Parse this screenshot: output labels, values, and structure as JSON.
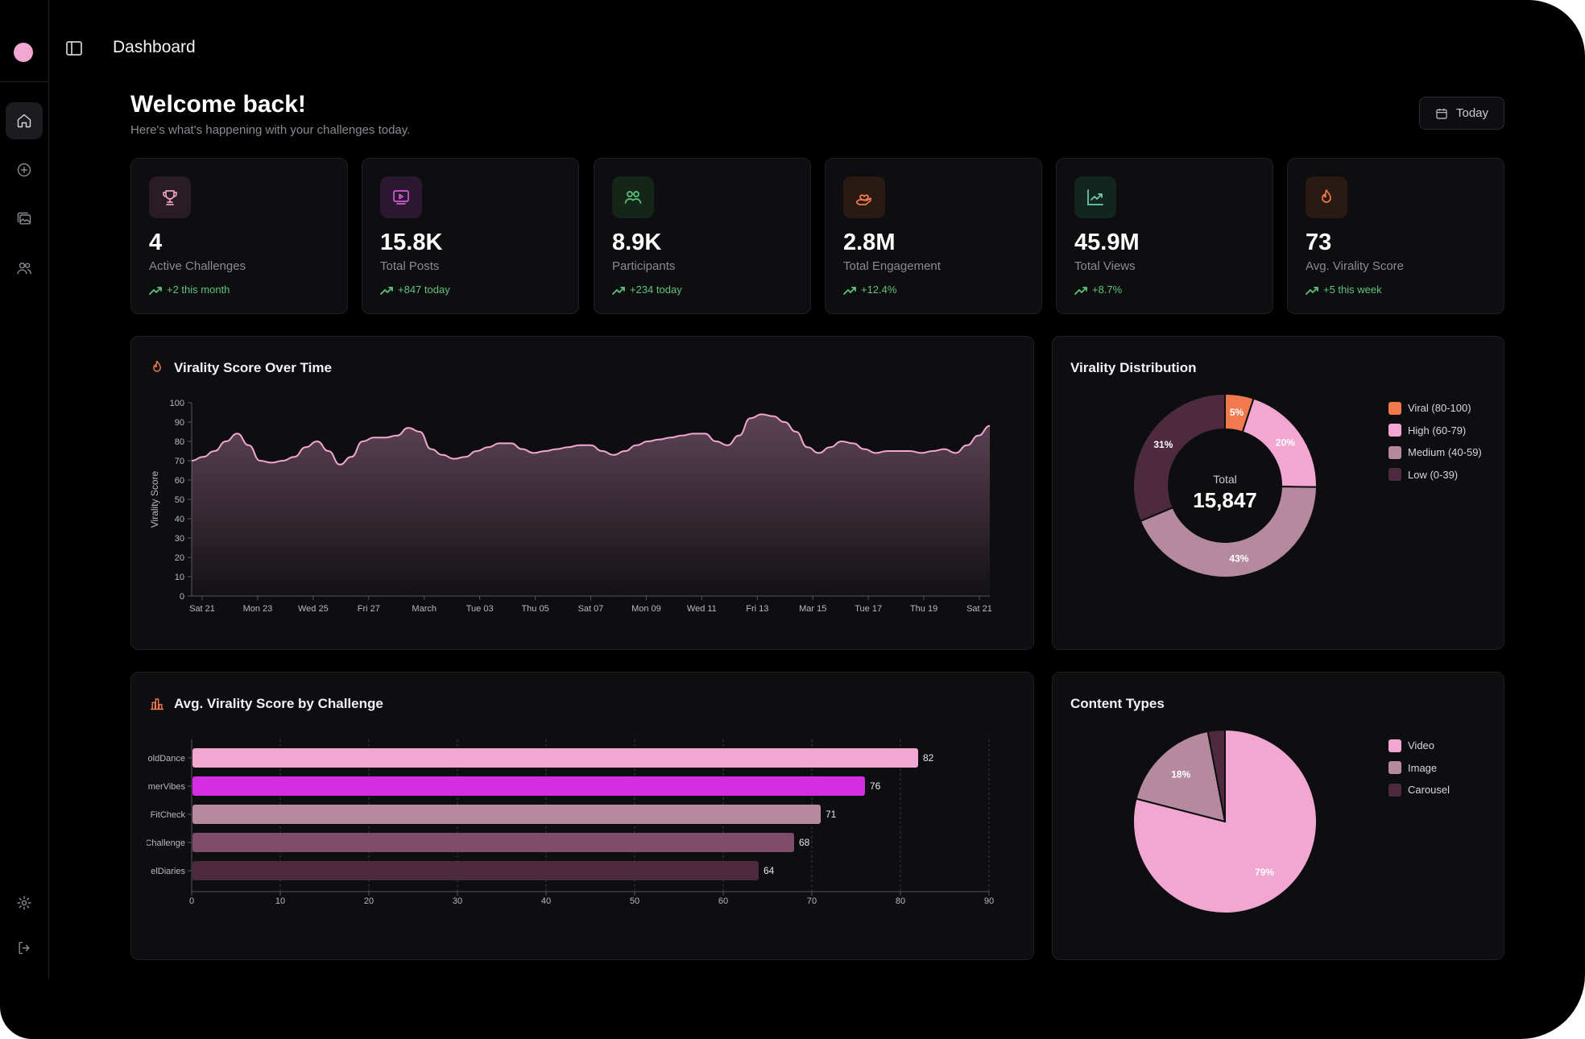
{
  "header": {
    "title": "Dashboard"
  },
  "welcome": {
    "title": "Welcome back!",
    "subtitle": "Here's what's happening with your challenges today."
  },
  "date_filter": {
    "label": "Today"
  },
  "sidebar": {
    "nav": [
      {
        "icon": "home-icon",
        "active": true
      },
      {
        "icon": "plus-circle-icon",
        "active": false
      },
      {
        "icon": "gallery-icon",
        "active": false
      },
      {
        "icon": "users-icon",
        "active": false
      }
    ],
    "bottom": [
      {
        "icon": "gear-icon"
      },
      {
        "icon": "logout-icon"
      }
    ]
  },
  "stats": [
    {
      "icon": "trophy-icon",
      "value": "4",
      "label": "Active Challenges",
      "delta": "+2 this month",
      "color": "#e8a0c0",
      "bg": "#2a1c24"
    },
    {
      "icon": "video-icon",
      "value": "15.8K",
      "label": "Total Posts",
      "delta": "+847 today",
      "color": "#d45ad8",
      "bg": "#2a1830"
    },
    {
      "icon": "users-icon",
      "value": "8.9K",
      "label": "Participants",
      "delta": "+234 today",
      "color": "#5ec27a",
      "bg": "#14261a"
    },
    {
      "icon": "heart-hand-icon",
      "value": "2.8M",
      "label": "Total Engagement",
      "delta": "+12.4%",
      "color": "#f07a4e",
      "bg": "#2a1a14"
    },
    {
      "icon": "trend-chart-icon",
      "value": "45.9M",
      "label": "Total Views",
      "delta": "+8.7%",
      "color": "#6fd0a8",
      "bg": "#12261f"
    },
    {
      "icon": "flame-icon",
      "value": "73",
      "label": "Avg. Virality Score",
      "delta": "+5 this week",
      "color": "#f07a4e",
      "bg": "#2a1a14"
    }
  ],
  "colors": {
    "accent_pink": "#f2a7d2",
    "magenta": "#d42ee0",
    "orange": "#f07a4e",
    "green": "#5ec27a",
    "card_bg": "#0e0e11"
  },
  "chart_data": [
    {
      "type": "area",
      "title": "Virality Score Over Time",
      "ylabel": "Virality Score",
      "ylim": [
        0,
        100
      ],
      "yticks": [
        0,
        10,
        20,
        30,
        40,
        50,
        60,
        70,
        80,
        90,
        100
      ],
      "xtick_labels": [
        "Sat 21",
        "Mon 23",
        "Wed 25",
        "Fri 27",
        "March",
        "Tue 03",
        "Thu 05",
        "Sat 07",
        "Mon 09",
        "Wed 11",
        "Fri 13",
        "Mar 15",
        "Tue 17",
        "Thu 19",
        "Sat 21"
      ],
      "values": [
        70,
        72,
        75,
        80,
        84,
        78,
        70,
        69,
        70,
        72,
        77,
        80,
        75,
        68,
        72,
        80,
        82,
        82,
        83,
        87,
        85,
        76,
        73,
        71,
        72,
        75,
        77,
        79,
        79,
        76,
        74,
        75,
        76,
        77,
        78,
        78,
        75,
        73,
        75,
        78,
        80,
        81,
        82,
        83,
        84,
        84,
        80,
        78,
        83,
        92,
        94,
        93,
        90,
        85,
        77,
        74,
        77,
        80,
        79,
        76,
        74,
        75,
        75,
        75,
        74,
        75,
        76,
        74,
        78,
        83,
        88
      ],
      "grid": false
    },
    {
      "type": "pie",
      "title": "Virality Distribution",
      "center_label": "Total",
      "center_value": "15,847",
      "slices": [
        {
          "name": "Viral (80-100)",
          "value": 5,
          "label": "5%",
          "color": "#f07a4e"
        },
        {
          "name": "High (60-79)",
          "value": 20,
          "label": "20%",
          "color": "#f2a7d2"
        },
        {
          "name": "Medium (40-59)",
          "value": 43,
          "label": "43%",
          "color": "#b58a9e"
        },
        {
          "name": "Low (0-39)",
          "value": 31,
          "label": "31%",
          "color": "#4e2a3e"
        }
      ],
      "legend": "right"
    },
    {
      "type": "bar",
      "orientation": "horizontal",
      "title": "Avg. Virality Score by Challenge",
      "categories": [
        "oldDance",
        "merVibes",
        "FitCheck",
        "Challenge",
        "elDiaries"
      ],
      "values": [
        82,
        76,
        71,
        68,
        64
      ],
      "colors": [
        "#f2a7d2",
        "#d42ee0",
        "#b58a9e",
        "#7e4d6a",
        "#4e2a3e"
      ],
      "xlim": [
        0,
        90
      ],
      "xticks": [
        0,
        10,
        20,
        30,
        40,
        50,
        60,
        70,
        80,
        90
      ],
      "grid": true
    },
    {
      "type": "pie",
      "title": "Content Types",
      "slices": [
        {
          "name": "Video",
          "value": 79,
          "label": "79%",
          "color": "#f2a7d2"
        },
        {
          "name": "Image",
          "value": 18,
          "label": "18%",
          "color": "#b58a9e"
        },
        {
          "name": "Carousel",
          "value": 3,
          "label": "",
          "color": "#4e2a3e"
        }
      ],
      "legend": "right"
    }
  ]
}
